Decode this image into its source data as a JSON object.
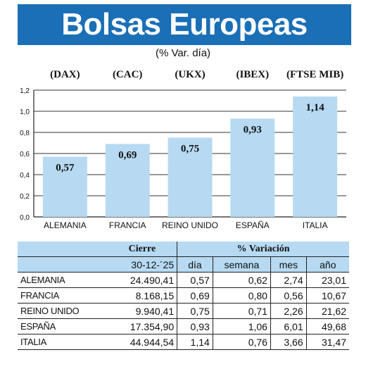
{
  "title": "Bolsas Europeas",
  "subtitle": "(% Var. día)",
  "chart_data": {
    "type": "bar",
    "categories": [
      "ALEMANIA",
      "FRANCIA",
      "REINO UNIDO",
      "ESPAÑA",
      "ITALIA"
    ],
    "index_codes": [
      "(DAX)",
      "(CAC)",
      "(UKX)",
      "(IBEX)",
      "(FTSE MIB)"
    ],
    "values": [
      0.57,
      0.69,
      0.75,
      0.93,
      1.14
    ],
    "value_labels": [
      "0,57",
      "0,69",
      "0,75",
      "0,93",
      "1,14"
    ],
    "ylim": [
      0,
      1.2
    ],
    "y_ticks": [
      0,
      0.2,
      0.4,
      0.6,
      0.8,
      1.0,
      1.2
    ],
    "y_tick_labels": [
      "0,0",
      "0,2",
      "0,4",
      "0,6",
      "0,8",
      "1,0",
      "1,2"
    ],
    "grid": true,
    "bar_color": "#b7daf2"
  },
  "table": {
    "group_headers": [
      "Cierre",
      "% Variación"
    ],
    "columns": [
      "30-12-´25",
      "día",
      "semana",
      "mes",
      "año"
    ],
    "rows": [
      {
        "name": "ALEMANIA",
        "cierre": "24.490,41",
        "dia": "0,57",
        "semana": "0,62",
        "mes": "2,74",
        "ano": "23,01"
      },
      {
        "name": "FRANCIA",
        "cierre": "8.168,15",
        "dia": "0,69",
        "semana": "0,80",
        "mes": "0,56",
        "ano": "10,67"
      },
      {
        "name": "REINO UNIDO",
        "cierre": "9.940,41",
        "dia": "0,75",
        "semana": "0,71",
        "mes": "2,26",
        "ano": "21,62"
      },
      {
        "name": "ESPAÑA",
        "cierre": "17.354,90",
        "dia": "0,93",
        "semana": "1,06",
        "mes": "6,01",
        "ano": "49,68"
      },
      {
        "name": "ITALIA",
        "cierre": "44.944,54",
        "dia": "1,14",
        "semana": "0,76",
        "mes": "3,66",
        "ano": "31,47"
      }
    ]
  },
  "colors": {
    "banner": "#1a6fb6",
    "bars": "#b7daf2",
    "table_header": "#b7daf2"
  }
}
